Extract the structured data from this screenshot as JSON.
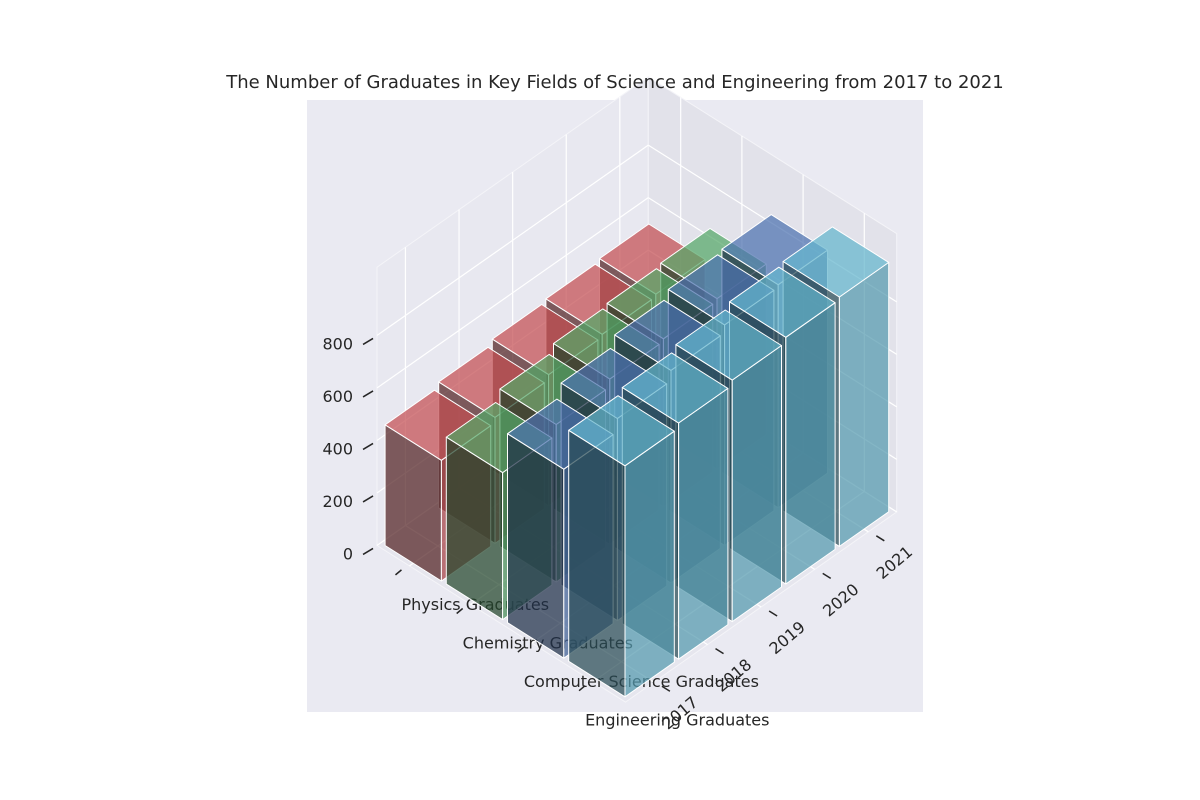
{
  "chart_data": {
    "type": "bar3d",
    "title": "The Number of Graduates in Key Fields of Science and Engineering from 2017 to 2021",
    "categories": [
      "2017",
      "2018",
      "2019",
      "2020",
      "2021"
    ],
    "series": [
      {
        "name": "Engineering Graduates",
        "values": [
          880,
          900,
          920,
          940,
          950
        ],
        "color": "#64b5cd"
      },
      {
        "name": "Computer Science Graduates",
        "values": [
          720,
          770,
          810,
          840,
          850
        ],
        "color": "#4c72b0"
      },
      {
        "name": "Chemistry Graduates",
        "values": [
          560,
          600,
          630,
          640,
          650
        ],
        "color": "#55a868"
      },
      {
        "name": "Physics Graduates",
        "values": [
          460,
          480,
          500,
          510,
          520
        ],
        "color": "#c44e52"
      }
    ],
    "z_ticks": [
      "0",
      "200",
      "400",
      "600",
      "800"
    ],
    "zlim": [
      0,
      950
    ],
    "grid": true
  }
}
